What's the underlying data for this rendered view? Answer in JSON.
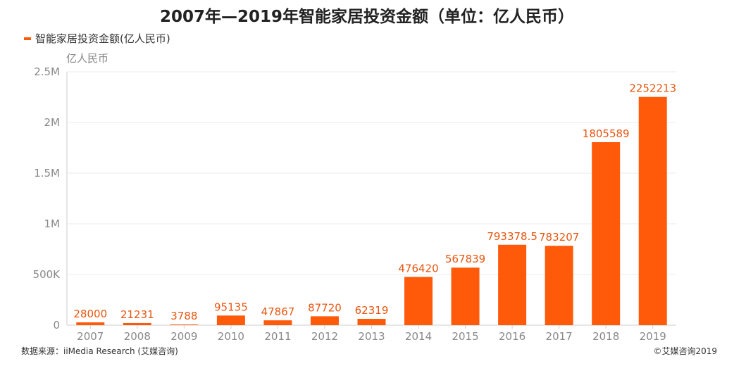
{
  "title": "2007年—2019年智能家居投资金额（单位：亿人民币）",
  "unit_label": "亿人民币",
  "source": "数据来源：iiMedia Research (艾媒咨询)",
  "copyright": "©艾媒咨询2019",
  "colors": {
    "bar": "#FF5A0A",
    "label": "#E8550F",
    "grid": "#EBEBEB",
    "axis": "#CCCCCC"
  },
  "chart_data": {
    "type": "bar",
    "title": "2007年—2019年智能家居投资金额（单位：亿人民币）",
    "xlabel": "",
    "ylabel": "亿人民币",
    "categories": [
      "2007",
      "2008",
      "2009",
      "2010",
      "2011",
      "2012",
      "2013",
      "2014",
      "2015",
      "2016",
      "2017",
      "2018",
      "2019"
    ],
    "series": [
      {
        "name": "智能家居投资金额(亿人民币)",
        "values": [
          28000,
          21231,
          3788,
          95135,
          47867,
          87720,
          62319,
          476420,
          567839,
          793378.5,
          783207,
          1805589,
          2252213
        ],
        "labels": [
          "28000",
          "21231",
          "3788",
          "95135",
          "47867",
          "87720",
          "62319",
          "476420",
          "567839",
          "793378.5",
          "783207",
          "1805589",
          "2252213"
        ]
      }
    ],
    "ylim": [
      0,
      2500000
    ],
    "yticks": [
      0,
      500000,
      1000000,
      1500000,
      2000000,
      2500000
    ],
    "ytick_labels": [
      "0",
      "500K",
      "1M",
      "1.5M",
      "2M",
      "2.5M"
    ],
    "grid": true,
    "legend": "top-left"
  }
}
